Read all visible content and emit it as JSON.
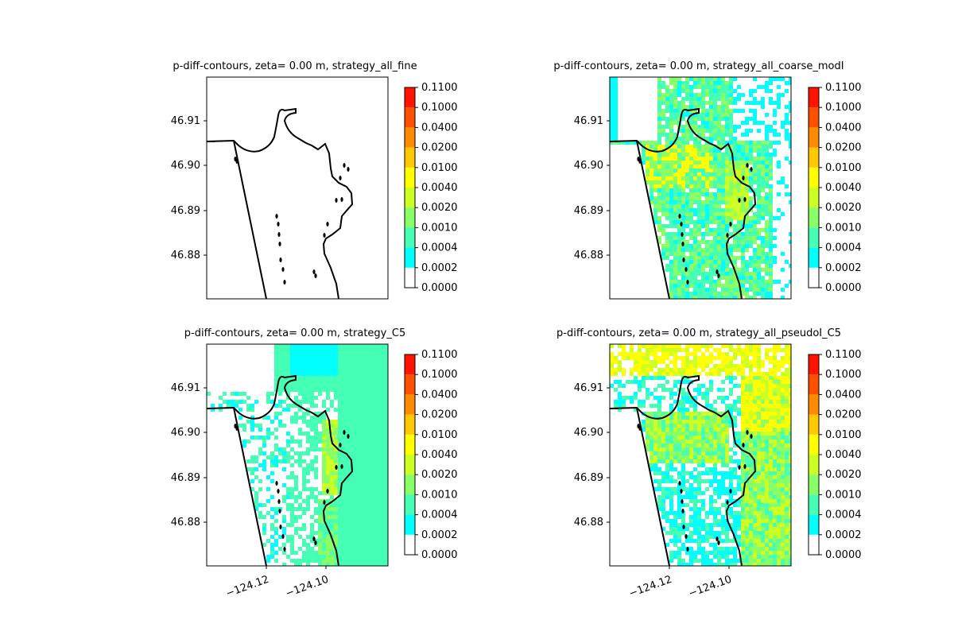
{
  "colors": {
    "levels": [
      "#ffffff",
      "#00ffff",
      "#44ffb4",
      "#88ff66",
      "#ccff22",
      "#ffff00",
      "#ffc800",
      "#ff8c00",
      "#ff5000",
      "#ff1400",
      "#e00000"
    ],
    "coastline": "#000000"
  },
  "chart_data": [
    {
      "type": "heatmap",
      "title": "p-diff-contours, zeta= 0.00 m, strategy_all_fine",
      "xlabel": "",
      "ylabel": "",
      "x_tick_labels": [],
      "y_ticks": [
        46.88,
        46.89,
        46.9,
        46.91
      ],
      "y_tick_labels": [
        "46.88",
        "46.89",
        "46.90",
        "46.91"
      ],
      "colorbar": {
        "levels": [
          "0.0000",
          "0.0002",
          "0.0004",
          "0.0010",
          "0.0020",
          "0.0040",
          "0.0100",
          "0.0200",
          "0.0400",
          "0.1000",
          "0.1100"
        ]
      },
      "pattern": "none"
    },
    {
      "type": "heatmap",
      "title": "p-diff-contours, zeta= 0.00 m, strategy_all_coarse_modI",
      "xlabel": "",
      "ylabel": "",
      "x_tick_labels": [],
      "y_ticks": [
        46.88,
        46.89,
        46.9,
        46.91
      ],
      "y_tick_labels": [
        "46.88",
        "46.89",
        "46.90",
        "46.91"
      ],
      "colorbar": {
        "levels": [
          "0.0000",
          "0.0002",
          "0.0004",
          "0.0010",
          "0.0020",
          "0.0040",
          "0.0100",
          "0.0200",
          "0.0400",
          "0.1000",
          "0.1100"
        ]
      },
      "pattern": "coarse"
    },
    {
      "type": "heatmap",
      "title": "p-diff-contours, zeta= 0.00 m, strategy_C5",
      "xlabel": "",
      "ylabel": "",
      "x_ticks": [
        -124.12,
        -124.1
      ],
      "x_tick_labels": [
        "−124.12",
        "−124.10"
      ],
      "y_ticks": [
        46.88,
        46.89,
        46.9,
        46.91
      ],
      "y_tick_labels": [
        "46.88",
        "46.89",
        "46.90",
        "46.91"
      ],
      "colorbar": {
        "levels": [
          "0.0000",
          "0.0002",
          "0.0004",
          "0.0010",
          "0.0020",
          "0.0040",
          "0.0100",
          "0.0200",
          "0.0400",
          "0.1000",
          "0.1100"
        ]
      },
      "pattern": "c5"
    },
    {
      "type": "heatmap",
      "title": "p-diff-contours, zeta= 0.00 m, strategy_all_pseudoI_C5",
      "xlabel": "",
      "ylabel": "",
      "x_ticks": [
        -124.12,
        -124.1
      ],
      "x_tick_labels": [
        "−124.12",
        "−124.10"
      ],
      "y_ticks": [
        46.88,
        46.89,
        46.9,
        46.91
      ],
      "y_tick_labels": [
        "46.88",
        "46.89",
        "46.90",
        "46.91"
      ],
      "colorbar": {
        "levels": [
          "0.0000",
          "0.0002",
          "0.0004",
          "0.0010",
          "0.0020",
          "0.0040",
          "0.0100",
          "0.0200",
          "0.0400",
          "0.1000",
          "0.1100"
        ]
      },
      "pattern": "pseudo"
    }
  ]
}
